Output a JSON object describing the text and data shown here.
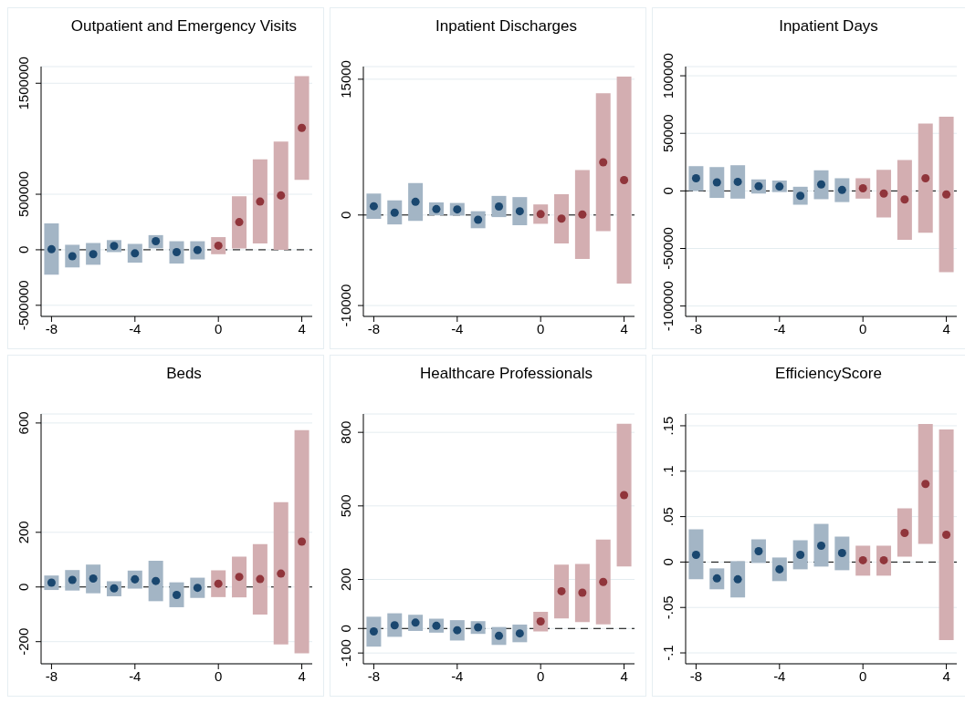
{
  "chart_data": [
    {
      "type": "scatter",
      "title": "Outpatient and Emergency Visits",
      "xlim": [
        -8.5,
        4.5
      ],
      "xticks": [
        -8,
        -4,
        0,
        4
      ],
      "ylim": [
        -600000,
        1650000
      ],
      "yticks": [
        -500000,
        0,
        500000,
        1500000
      ],
      "grid": "y",
      "marker": "circle",
      "ref_lines": [
        {
          "axis": "y",
          "value": 0,
          "color": "#000000",
          "line_style": "dashed"
        }
      ],
      "series": [
        {
          "color": "#1a476f",
          "x": [
            -8,
            -7,
            -6,
            -5,
            -4,
            -3,
            -2,
            -1
          ],
          "values": [
            5000,
            -58000,
            -40000,
            34000,
            -32000,
            77000,
            -21000,
            -3000
          ],
          "errors": [
            [
              -225000,
              238000
            ],
            [
              -159000,
              45000
            ],
            [
              -135000,
              61000
            ],
            [
              -21000,
              87000
            ],
            [
              -116000,
              53000
            ],
            [
              13000,
              132000
            ],
            [
              -124000,
              77000
            ],
            [
              -87000,
              77000
            ]
          ]
        },
        {
          "color": "#90353b",
          "x": [
            0,
            1,
            2,
            3,
            4
          ],
          "values": [
            37000,
            249000,
            434000,
            489000,
            1098000
          ],
          "errors": [
            [
              -40000,
              114000
            ],
            [
              11000,
              481000
            ],
            [
              56000,
              815000
            ],
            [
              0,
              974000
            ],
            [
              630000,
              1563000
            ]
          ]
        }
      ]
    },
    {
      "type": "scatter",
      "title": "Inpatient Discharges",
      "xlim": [
        -8.5,
        4.5
      ],
      "xticks": [
        -8,
        -4,
        0,
        4
      ],
      "ylim": [
        -11200,
        16400
      ],
      "yticks": [
        -10000,
        0,
        15000
      ],
      "grid": "y",
      "marker": "circle",
      "ref_lines": [
        {
          "axis": "y",
          "value": 0,
          "color": "#000000",
          "line_style": "dashed"
        }
      ],
      "series": [
        {
          "color": "#1a476f",
          "x": [
            -8,
            -7,
            -6,
            -5,
            -4,
            -3,
            -2,
            -1
          ],
          "values": [
            970,
            260,
            1460,
            650,
            620,
            -520,
            940,
            420
          ],
          "errors": [
            [
              -420,
              2370
            ],
            [
              -1040,
              1620
            ],
            [
              -650,
              3530
            ],
            [
              -30,
              1390
            ],
            [
              -60,
              1330
            ],
            [
              -1460,
              420
            ],
            [
              -230,
              2110
            ],
            [
              -1130,
              1980
            ]
          ]
        },
        {
          "color": "#90353b",
          "x": [
            0,
            1,
            2,
            3,
            4
          ],
          "values": [
            100,
            -390,
            60,
            5830,
            3860
          ],
          "errors": [
            [
              -970,
              1170
            ],
            [
              -3140,
              2300
            ],
            [
              -4860,
              4960
            ],
            [
              -1780,
              13450
            ],
            [
              -7580,
              15290
            ]
          ]
        }
      ]
    },
    {
      "type": "scatter",
      "title": "Inpatient Days",
      "xlim": [
        -8.5,
        4.5
      ],
      "xticks": [
        -8,
        -4,
        0,
        4
      ],
      "ylim": [
        -109000,
        108000
      ],
      "yticks": [
        -100000,
        -50000,
        0,
        50000,
        100000
      ],
      "grid": "y",
      "marker": "circle",
      "ref_lines": [
        {
          "axis": "y",
          "value": 0,
          "color": "#000000",
          "line_style": "dashed"
        }
      ],
      "series": [
        {
          "color": "#1a476f",
          "x": [
            -8,
            -7,
            -6,
            -5,
            -4,
            -3,
            -2,
            -1
          ],
          "values": [
            11000,
            7400,
            7900,
            4100,
            3800,
            -4300,
            5600,
            800
          ],
          "errors": [
            [
              0,
              21500
            ],
            [
              -6100,
              20700
            ],
            [
              -6700,
              22300
            ],
            [
              -2300,
              10000
            ],
            [
              -1000,
              9000
            ],
            [
              -12000,
              3600
            ],
            [
              -7200,
              17900
            ],
            [
              -9700,
              11000
            ]
          ]
        },
        {
          "color": "#90353b",
          "x": [
            0,
            1,
            2,
            3,
            4
          ],
          "values": [
            2300,
            -2300,
            -7400,
            11000,
            -3100
          ],
          "errors": [
            [
              -6700,
              11000
            ],
            [
              -23000,
              18400
            ],
            [
              -42500,
              26900
            ],
            [
              -36300,
              58600
            ],
            [
              -70600,
              64500
            ]
          ]
        }
      ]
    },
    {
      "type": "scatter",
      "title": "Beds",
      "xlim": [
        -8.5,
        4.5
      ],
      "xticks": [
        -8,
        -4,
        0,
        4
      ],
      "ylim": [
        -281,
        633
      ],
      "yticks": [
        -200,
        0,
        200,
        600
      ],
      "grid": "y",
      "marker": "circle",
      "ref_lines": [
        {
          "axis": "y",
          "value": 0,
          "color": "#000000",
          "line_style": "dashed"
        }
      ],
      "series": [
        {
          "color": "#1a476f",
          "x": [
            -8,
            -7,
            -6,
            -5,
            -4,
            -3,
            -2,
            -1
          ],
          "values": [
            16,
            26,
            31,
            -5,
            28,
            22,
            -29,
            -3
          ],
          "errors": [
            [
              -11,
              42
            ],
            [
              -13,
              62
            ],
            [
              -23,
              82
            ],
            [
              -34,
              21
            ],
            [
              -6,
              60
            ],
            [
              -52,
              96
            ],
            [
              -74,
              17
            ],
            [
              -40,
              34
            ]
          ]
        },
        {
          "color": "#90353b",
          "x": [
            0,
            1,
            2,
            3,
            4
          ],
          "values": [
            12,
            37,
            29,
            49,
            166
          ],
          "errors": [
            [
              -37,
              61
            ],
            [
              -38,
              111
            ],
            [
              -101,
              157
            ],
            [
              -210,
              310
            ],
            [
              -243,
              574
            ]
          ]
        }
      ]
    },
    {
      "type": "scatter",
      "title": "Healthcare Professionals",
      "xlim": [
        -8.5,
        4.5
      ],
      "xticks": [
        -8,
        -4,
        0,
        4
      ],
      "ylim": [
        -144,
        875
      ],
      "yticks": [
        -100,
        0,
        200,
        500,
        800
      ],
      "grid": "y",
      "marker": "circle",
      "ref_lines": [
        {
          "axis": "y",
          "value": 0,
          "color": "#000000",
          "line_style": "dashed"
        }
      ],
      "series": [
        {
          "color": "#1a476f",
          "x": [
            -8,
            -7,
            -6,
            -5,
            -4,
            -3,
            -2,
            -1
          ],
          "values": [
            -12,
            13,
            24,
            11,
            -7,
            5,
            -30,
            -20
          ],
          "errors": [
            [
              -74,
              48
            ],
            [
              -34,
              62
            ],
            [
              -10,
              56
            ],
            [
              -17,
              40
            ],
            [
              -49,
              34
            ],
            [
              -22,
              30
            ],
            [
              -67,
              6
            ],
            [
              -56,
              16
            ]
          ]
        },
        {
          "color": "#90353b",
          "x": [
            0,
            1,
            2,
            3,
            4
          ],
          "values": [
            29,
            152,
            146,
            190,
            544
          ],
          "errors": [
            [
              -12,
              68
            ],
            [
              41,
              260
            ],
            [
              26,
              263
            ],
            [
              17,
              363
            ],
            [
              253,
              835
            ]
          ]
        }
      ]
    },
    {
      "type": "scatter",
      "title": "EfficiencyScore",
      "xlim": [
        -8.5,
        4.5
      ],
      "xticks": [
        -8,
        -4,
        0,
        4
      ],
      "ylim": [
        -0.112,
        0.163
      ],
      "yticks": [
        {
          "value": -0.1,
          "label": "-.1"
        },
        {
          "value": -0.05,
          "label": "-.05"
        },
        0,
        {
          "value": 0.05,
          "label": ".05"
        },
        {
          "value": 0.1,
          "label": ".1"
        },
        {
          "value": 0.15,
          "label": ".15"
        }
      ],
      "grid": "y",
      "marker": "circle",
      "ref_lines": [
        {
          "axis": "y",
          "value": 0,
          "color": "#000000",
          "line_style": "dashed"
        }
      ],
      "series": [
        {
          "color": "#1a476f",
          "x": [
            -8,
            -7,
            -6,
            -5,
            -4,
            -3,
            -2,
            -1
          ],
          "values": [
            0.008,
            -0.018,
            -0.019,
            0.012,
            -0.008,
            0.008,
            0.018,
            0.01
          ],
          "errors": [
            [
              -0.019,
              0.036
            ],
            [
              -0.03,
              -0.007
            ],
            [
              -0.039,
              0.001
            ],
            [
              -0.001,
              0.025
            ],
            [
              -0.021,
              0.005
            ],
            [
              -0.008,
              0.024
            ],
            [
              -0.005,
              0.042
            ],
            [
              -0.009,
              0.028
            ]
          ]
        },
        {
          "color": "#90353b",
          "x": [
            0,
            1,
            2,
            3,
            4
          ],
          "values": [
            0.002,
            0.002,
            0.032,
            0.086,
            0.03
          ],
          "errors": [
            [
              -0.015,
              0.018
            ],
            [
              -0.015,
              0.018
            ],
            [
              0.006,
              0.059
            ],
            [
              0.02,
              0.152
            ],
            [
              -0.086,
              0.146
            ]
          ]
        }
      ]
    }
  ]
}
